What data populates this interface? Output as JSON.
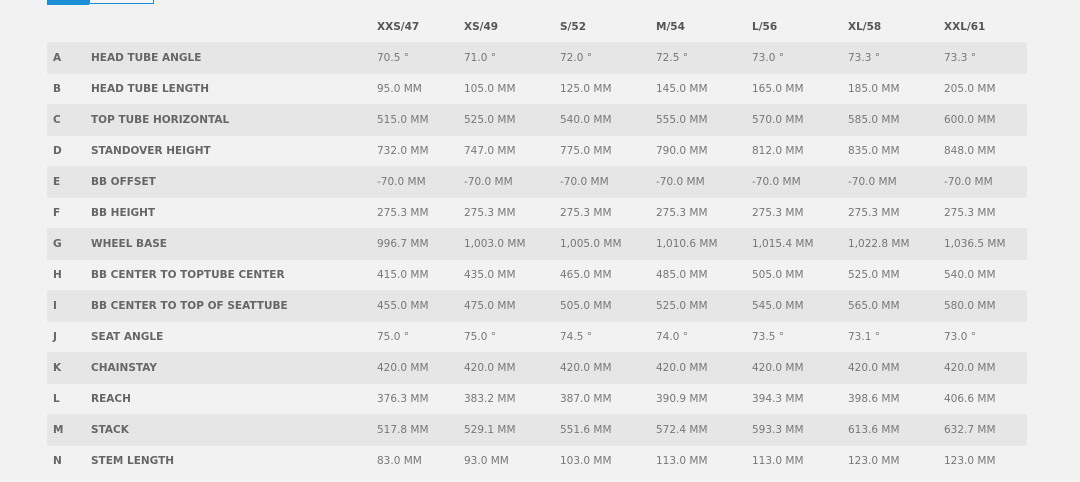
{
  "accent_color": "#1a8fd6",
  "sizes": [
    "XXS/47",
    "XS/49",
    "S/52",
    "M/54",
    "L/56",
    "XL/58",
    "XXL/61"
  ],
  "rows": [
    {
      "letter": "A",
      "label": "HEAD TUBE ANGLE",
      "values": [
        "70.5 °",
        "71.0 °",
        "72.0 °",
        "72.5 °",
        "73.0 °",
        "73.3 °",
        "73.3 °"
      ]
    },
    {
      "letter": "B",
      "label": "HEAD TUBE LENGTH",
      "values": [
        "95.0 MM",
        "105.0 MM",
        "125.0 MM",
        "145.0 MM",
        "165.0 MM",
        "185.0 MM",
        "205.0 MM"
      ]
    },
    {
      "letter": "C",
      "label": "TOP TUBE HORIZONTAL",
      "values": [
        "515.0 MM",
        "525.0 MM",
        "540.0 MM",
        "555.0 MM",
        "570.0 MM",
        "585.0 MM",
        "600.0 MM"
      ]
    },
    {
      "letter": "D",
      "label": "STANDOVER HEIGHT",
      "values": [
        "732.0 MM",
        "747.0 MM",
        "775.0 MM",
        "790.0 MM",
        "812.0 MM",
        "835.0 MM",
        "848.0 MM"
      ]
    },
    {
      "letter": "E",
      "label": "BB OFFSET",
      "values": [
        "-70.0 MM",
        "-70.0 MM",
        "-70.0 MM",
        "-70.0 MM",
        "-70.0 MM",
        "-70.0 MM",
        "-70.0 MM"
      ]
    },
    {
      "letter": "F",
      "label": "BB HEIGHT",
      "values": [
        "275.3 MM",
        "275.3 MM",
        "275.3 MM",
        "275.3 MM",
        "275.3 MM",
        "275.3 MM",
        "275.3 MM"
      ]
    },
    {
      "letter": "G",
      "label": "WHEEL BASE",
      "values": [
        "996.7 MM",
        "1,003.0 MM",
        "1,005.0 MM",
        "1,010.6 MM",
        "1,015.4 MM",
        "1,022.8 MM",
        "1,036.5 MM"
      ]
    },
    {
      "letter": "H",
      "label": "BB CENTER TO TOPTUBE CENTER",
      "values": [
        "415.0 MM",
        "435.0 MM",
        "465.0 MM",
        "485.0 MM",
        "505.0 MM",
        "525.0 MM",
        "540.0 MM"
      ]
    },
    {
      "letter": "I",
      "label": "BB CENTER TO TOP OF SEATTUBE",
      "values": [
        "455.0 MM",
        "475.0 MM",
        "505.0 MM",
        "525.0 MM",
        "545.0 MM",
        "565.0 MM",
        "580.0 MM"
      ]
    },
    {
      "letter": "J",
      "label": "SEAT ANGLE",
      "values": [
        "75.0 °",
        "75.0 °",
        "74.5 °",
        "74.0 °",
        "73.5 °",
        "73.1 °",
        "73.0 °"
      ]
    },
    {
      "letter": "K",
      "label": "CHAINSTAY",
      "values": [
        "420.0 MM",
        "420.0 MM",
        "420.0 MM",
        "420.0 MM",
        "420.0 MM",
        "420.0 MM",
        "420.0 MM"
      ]
    },
    {
      "letter": "L",
      "label": "REACH",
      "values": [
        "376.3 MM",
        "383.2 MM",
        "387.0 MM",
        "390.9 MM",
        "394.3 MM",
        "398.6 MM",
        "406.6 MM"
      ]
    },
    {
      "letter": "M",
      "label": "STACK",
      "values": [
        "517.8 MM",
        "529.1 MM",
        "551.6 MM",
        "572.4 MM",
        "593.3 MM",
        "613.6 MM",
        "632.7 MM"
      ]
    },
    {
      "letter": "N",
      "label": "STEM LENGTH",
      "values": [
        "83.0 MM",
        "93.0 MM",
        "103.0 MM",
        "113.0 MM",
        "113.0 MM",
        "123.0 MM",
        "123.0 MM"
      ]
    }
  ]
}
